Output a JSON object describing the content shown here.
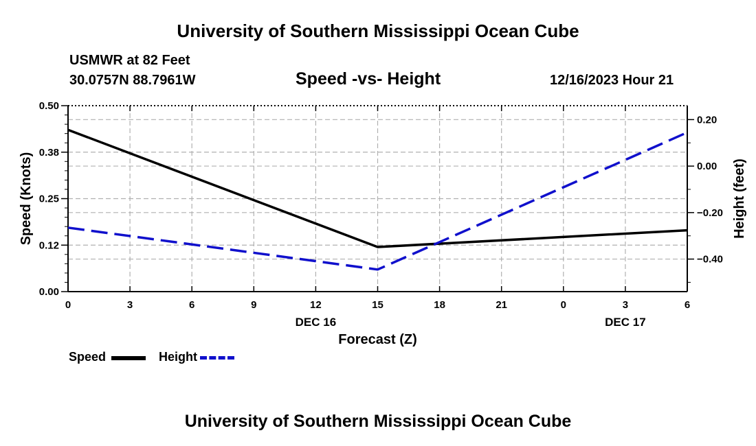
{
  "header": {
    "title": "University of Southern Mississippi Ocean Cube",
    "station": "USMWR at 82 Feet",
    "coords": "30.0757N  88.7961W",
    "subtitle": "Speed -vs- Height",
    "datetime": "12/16/2023 Hour 21"
  },
  "footer": {
    "title": "University of Southern Mississippi Ocean Cube"
  },
  "legend": {
    "items": [
      {
        "label": "Speed",
        "color": "#000000",
        "style": "solid"
      },
      {
        "label": "Height",
        "color": "#1010cc",
        "style": "dashed"
      }
    ]
  },
  "chart_data": {
    "type": "line",
    "title": "Speed -vs- Height",
    "xlabel": "Forecast (Z)",
    "ylabel": "Speed (Knots)",
    "y2label": "Height (feet)",
    "x": [
      0,
      3,
      6,
      9,
      12,
      15,
      18,
      21,
      24,
      27,
      30
    ],
    "x_tick_labels": [
      "0",
      "3",
      "6",
      "9",
      "12",
      "15",
      "18",
      "21",
      "0",
      "3",
      "6"
    ],
    "x_day_labels": [
      {
        "x": 12,
        "label": "DEC 16"
      },
      {
        "x": 27,
        "label": "DEC 17"
      }
    ],
    "xlim": [
      0,
      30
    ],
    "ylim": [
      0,
      0.5
    ],
    "y_ticks": [
      0.0,
      0.125,
      0.25,
      0.375,
      0.5
    ],
    "y_tick_labels": [
      "0.00",
      "0.12",
      "0.25",
      "0.38",
      "0.50"
    ],
    "y2lim": [
      -0.54,
      0.26
    ],
    "y2_ticks": [
      -0.4,
      -0.2,
      0.0,
      0.2
    ],
    "y2_tick_labels": [
      "−0.40",
      "−0.20",
      "0.00",
      "0.20"
    ],
    "grid": true,
    "series": [
      {
        "name": "Speed",
        "axis": "left",
        "color": "#000000",
        "style": "solid",
        "points": [
          [
            0,
            0.435
          ],
          [
            15,
            0.12
          ],
          [
            30,
            0.165
          ]
        ]
      },
      {
        "name": "Height",
        "axis": "right",
        "color": "#1010cc",
        "style": "dashed",
        "points": [
          [
            0,
            -0.265
          ],
          [
            15,
            -0.445
          ],
          [
            30,
            0.145
          ]
        ]
      }
    ]
  }
}
